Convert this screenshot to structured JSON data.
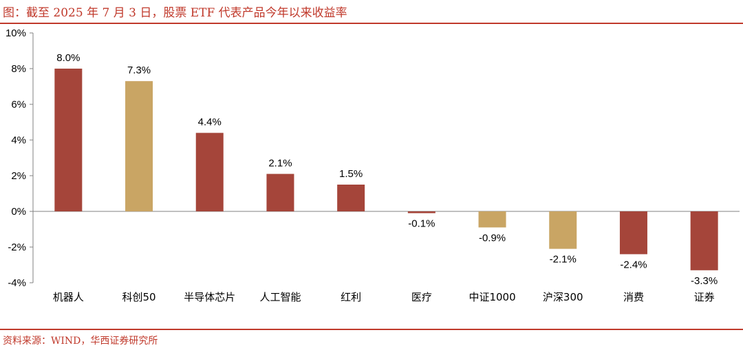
{
  "header": {
    "title": "图：截至 2025 年 7 月 3 日，股票 ETF 代表产品今年以来收益率"
  },
  "footer": {
    "source": "资料来源：WIND，华西证券研究所"
  },
  "colors": {
    "accent": "#c0392b",
    "bar_red": "#a5453a",
    "bar_gold": "#c9a564",
    "axis": "#808080"
  },
  "chart_data": {
    "type": "bar",
    "categories": [
      "机器人",
      "科创50",
      "半导体芯片",
      "人工智能",
      "红利",
      "医疗",
      "中证1000",
      "沪深300",
      "消费",
      "证券"
    ],
    "values": [
      8.0,
      7.3,
      4.4,
      2.1,
      1.5,
      -0.1,
      -0.9,
      -2.1,
      -2.4,
      -3.3
    ],
    "data_labels": [
      "8.0%",
      "7.3%",
      "4.4%",
      "2.1%",
      "1.5%",
      "-0.1%",
      "-0.9%",
      "-2.1%",
      "-2.4%",
      "-3.3%"
    ],
    "bar_colors": [
      "red",
      "gold",
      "red",
      "red",
      "red",
      "red",
      "gold",
      "gold",
      "red",
      "red"
    ],
    "ylim": [
      -4,
      10
    ],
    "yticks": [
      10,
      8,
      6,
      4,
      2,
      0,
      -2,
      -4
    ],
    "ytick_labels": [
      "10%",
      "8%",
      "6%",
      "4%",
      "2%",
      "0%",
      "-2%",
      "-4%"
    ],
    "grid": false,
    "legend": "none",
    "title": "",
    "xlabel": "",
    "ylabel": ""
  }
}
